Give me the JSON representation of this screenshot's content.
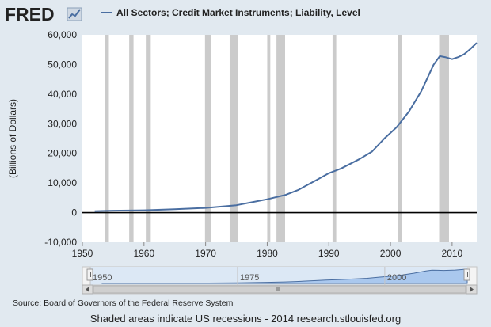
{
  "colors": {
    "background": "#e1e9f0",
    "plot_background": "#ffffff",
    "series_line": "#4a6ea1",
    "recession_shade": "#cbcbcb",
    "zero_line": "#000000",
    "navigator_fill": "#aac8ee",
    "navigator_line": "#4a6ea1",
    "navigator_bg": "#dce8f5"
  },
  "logo": {
    "text": "FRED",
    "icon": "line-chart-icon"
  },
  "navigator": {
    "ticks": [
      "1950",
      "1975",
      "2000"
    ],
    "scrollbar_icon": "grip-icon",
    "left_arrow_icon": "arrow-left-icon",
    "right_arrow_icon": "arrow-right-icon"
  },
  "footer": {
    "source": "Source: Board of Governors of the Federal Reserve System",
    "note": "Shaded areas indicate US recessions - 2014 research.stlouisfed.org"
  },
  "chart_data": {
    "type": "line",
    "series": [
      {
        "name": "All Sectors; Credit Market Instruments; Liability, Level",
        "x": [
          1952,
          1955,
          1960,
          1965,
          1970,
          1975,
          1980,
          1983,
          1985,
          1988,
          1990,
          1992,
          1995,
          1997,
          1999,
          2001,
          2003,
          2005,
          2007,
          2008,
          2009,
          2010,
          2011,
          2012,
          2013,
          2014
        ],
        "values": [
          500,
          650,
          800,
          1150,
          1600,
          2500,
          4500,
          6000,
          7600,
          11000,
          13300,
          14900,
          18100,
          20600,
          25000,
          28800,
          34100,
          41000,
          49900,
          52800,
          52400,
          51800,
          52500,
          53500,
          55300,
          57300
        ]
      }
    ],
    "recessions": [
      [
        1953.6,
        1954.3
      ],
      [
        1957.6,
        1958.3
      ],
      [
        1960.3,
        1961.1
      ],
      [
        1969.9,
        1970.9
      ],
      [
        1973.9,
        1975.2
      ],
      [
        1980.0,
        1980.5
      ],
      [
        1981.5,
        1982.9
      ],
      [
        1990.6,
        1991.2
      ],
      [
        2001.2,
        2001.9
      ],
      [
        2007.9,
        2009.5
      ]
    ],
    "ylabel": "(Billions of Dollars)",
    "xlabel": "",
    "xlim": [
      1950,
      2014
    ],
    "ylim": [
      -10000,
      60000
    ],
    "x_ticks": [
      "1950",
      "1960",
      "1970",
      "1980",
      "1990",
      "2000",
      "2010"
    ],
    "y_ticks": [
      "-10,000",
      "0",
      "10,000",
      "20,000",
      "30,000",
      "40,000",
      "50,000",
      "60,000"
    ],
    "y_tick_values": [
      -10000,
      0,
      10000,
      20000,
      30000,
      40000,
      50000,
      60000
    ],
    "x_tick_values": [
      1950,
      1960,
      1970,
      1980,
      1990,
      2000,
      2010
    ],
    "grid": false,
    "legend_position": "top"
  }
}
